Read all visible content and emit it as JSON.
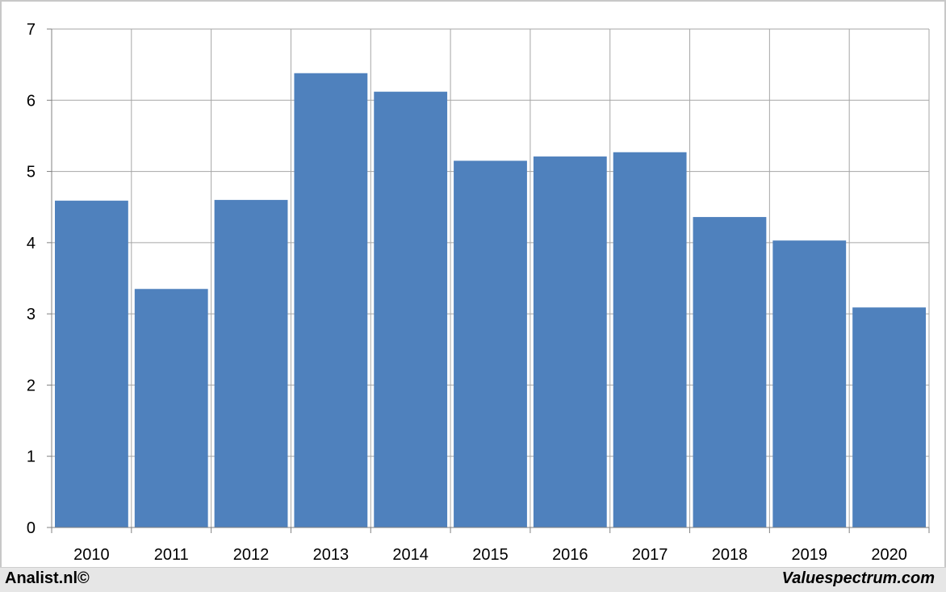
{
  "chart_data": {
    "type": "bar",
    "categories": [
      "2010",
      "2011",
      "2012",
      "2013",
      "2014",
      "2015",
      "2016",
      "2017",
      "2018",
      "2019",
      "2020"
    ],
    "values": [
      4.59,
      3.35,
      4.6,
      6.38,
      6.12,
      5.15,
      5.21,
      5.27,
      4.36,
      4.03,
      3.09
    ],
    "ylim": [
      0,
      7
    ],
    "yticks": [
      "0",
      "1",
      "2",
      "3",
      "4",
      "5",
      "6",
      "7"
    ],
    "grid": true,
    "bar_color": "#4f81bd",
    "grid_color": "#a6a6a6"
  },
  "footer": {
    "left": "Analist.nl©",
    "right": "Valuespectrum.com"
  }
}
